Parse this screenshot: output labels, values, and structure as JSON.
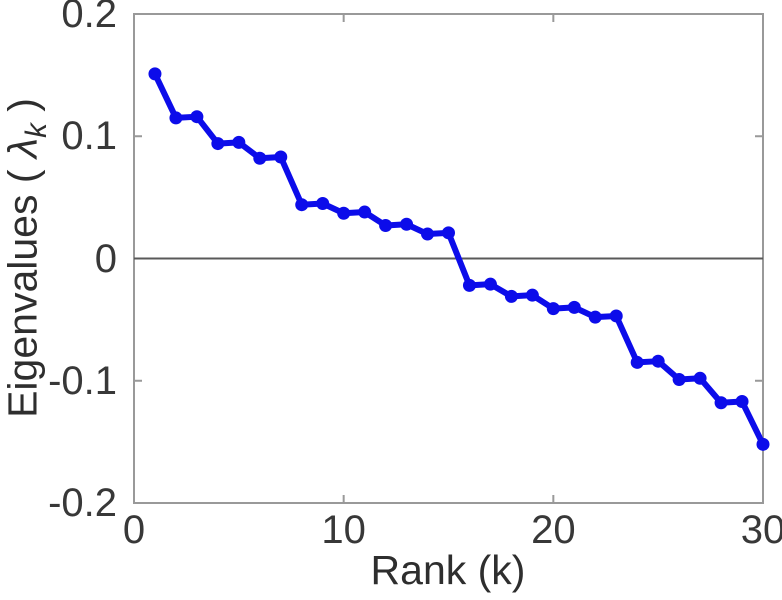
{
  "chart_data": {
    "type": "line",
    "title": "",
    "xlabel": "Rank (k)",
    "ylabel": "Eigenvalues ( λk )",
    "ylabel_parts": {
      "prefix": "Eigenvalues ( ",
      "symbol": "λ",
      "subscript": "k",
      "suffix": " )"
    },
    "x": [
      1,
      2,
      3,
      4,
      5,
      6,
      7,
      8,
      9,
      10,
      11,
      12,
      13,
      14,
      15,
      16,
      17,
      18,
      19,
      20,
      21,
      22,
      23,
      24,
      25,
      26,
      27,
      28,
      29,
      30
    ],
    "y": [
      0.151,
      0.115,
      0.116,
      0.094,
      0.095,
      0.082,
      0.083,
      0.044,
      0.045,
      0.037,
      0.038,
      0.027,
      0.028,
      0.02,
      0.021,
      -0.022,
      -0.021,
      -0.031,
      -0.03,
      -0.041,
      -0.04,
      -0.048,
      -0.047,
      -0.085,
      -0.084,
      -0.099,
      -0.098,
      -0.118,
      -0.117,
      -0.152
    ],
    "xlim": [
      0,
      30
    ],
    "ylim": [
      -0.2,
      0.2
    ],
    "xticks": [
      0,
      10,
      20,
      30
    ],
    "yticks": [
      -0.2,
      -0.1,
      0,
      0.1,
      0.2
    ],
    "xtick_labels": [
      "0",
      "10",
      "20",
      "30"
    ],
    "ytick_labels": [
      "-0.2",
      "-0.1",
      "0",
      "0.1",
      "0.2"
    ],
    "grid": false,
    "legend": null,
    "zero_line": true,
    "colors": {
      "line": "#0c0cea",
      "marker": "#0c0cea",
      "box": "#999999",
      "zero_line": "#595959",
      "tick_text": "#383838",
      "label_text": "#2e2e2e",
      "background": "#ffffff"
    }
  }
}
